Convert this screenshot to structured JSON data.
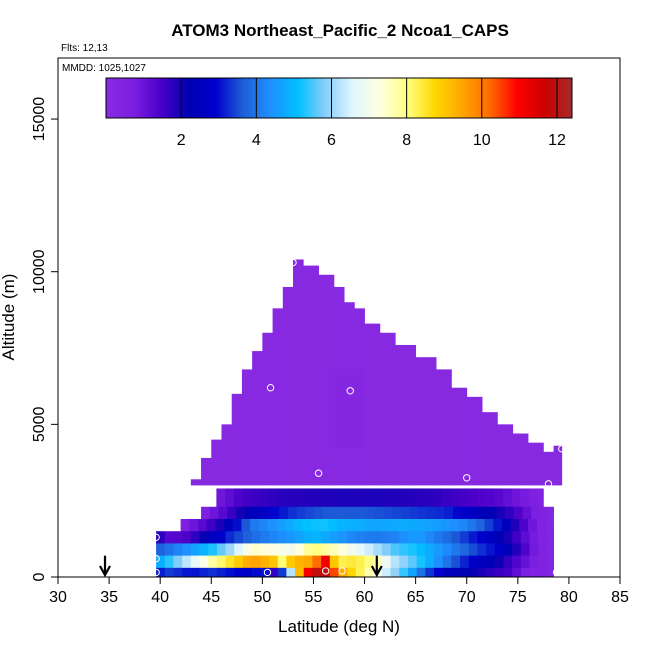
{
  "chart_data": {
    "type": "heatmap",
    "title": "ATOM3 Northeast_Pacific_2 Ncoa1_CAPS",
    "flights_label": "Flts: 12,13",
    "dates_label": "MMDD: 1025,1027",
    "xlabel": "Latitude (deg N)",
    "ylabel": "Altitude (m)",
    "xlim": [
      30,
      85
    ],
    "ylim": [
      0,
      17000
    ],
    "x_ticks": [
      "30",
      "35",
      "40",
      "45",
      "50",
      "55",
      "60",
      "65",
      "70",
      "75",
      "80",
      "85"
    ],
    "y_ticks": [
      "0",
      "5000",
      "10000",
      "15000"
    ],
    "colorbar": {
      "range": [
        0,
        12.4
      ],
      "ticks": [
        "2",
        "4",
        "6",
        "8",
        "10",
        "12"
      ],
      "colors": [
        "#8a2be2",
        "#7b1fe0",
        "#4a00c8",
        "#0000b0",
        "#0000cd",
        "#1e5fd8",
        "#1e90ff",
        "#00bfff",
        "#87cefa",
        "#e0f6ff",
        "#ffffe0",
        "#ffff80",
        "#ffd700",
        "#ffa500",
        "#ff6a00",
        "#ff0000",
        "#cd0000",
        "#a52a2a"
      ]
    },
    "cell_size": {
      "dlat": 0.85,
      "dalt": 500
    },
    "profile_outline": [
      [
        39.6,
        0,
        1500
      ],
      [
        41.0,
        0,
        2000
      ],
      [
        42.0,
        0,
        2500
      ],
      [
        43.0,
        0,
        3200
      ],
      [
        44.0,
        0,
        3900
      ],
      [
        45.0,
        0,
        4500
      ],
      [
        46.0,
        0,
        5000
      ],
      [
        47.0,
        0,
        6000
      ],
      [
        48.0,
        0,
        6800
      ],
      [
        49.0,
        0,
        7400
      ],
      [
        50.0,
        0,
        8000
      ],
      [
        51.0,
        0,
        8800
      ],
      [
        52.0,
        0,
        9500
      ],
      [
        53.0,
        0,
        10400
      ],
      [
        54.0,
        0,
        10200
      ],
      [
        55.5,
        0,
        9900
      ],
      [
        57.0,
        0,
        9500
      ],
      [
        58.0,
        0,
        9000
      ],
      [
        59.0,
        0,
        8800
      ],
      [
        60.0,
        0,
        8300
      ],
      [
        61.5,
        0,
        8000
      ],
      [
        63.0,
        0,
        7600
      ],
      [
        65.0,
        0,
        7200
      ],
      [
        67.0,
        0,
        6800
      ],
      [
        68.5,
        0,
        6200
      ],
      [
        70.0,
        0,
        5900
      ],
      [
        71.5,
        0,
        5400
      ],
      [
        73.0,
        0,
        5000
      ],
      [
        74.5,
        0,
        4700
      ],
      [
        76.0,
        0,
        4400
      ],
      [
        77.5,
        0,
        4100
      ],
      [
        78.5,
        0,
        4300
      ]
    ],
    "layers": [
      {
        "alt": [
          2300,
          2900
        ],
        "lat": [
          45.5,
          77.5
        ],
        "profile": [
          [
            45.5,
            0.8
          ],
          [
            48,
            1.5
          ],
          [
            52,
            1.8
          ],
          [
            57,
            1.9
          ],
          [
            62,
            1.9
          ],
          [
            66,
            1.8
          ],
          [
            70,
            1.5
          ],
          [
            73,
            1.3
          ],
          [
            75,
            0.9
          ],
          [
            77.5,
            0.5
          ]
        ]
      },
      {
        "alt": [
          1900,
          2300
        ],
        "lat": [
          44.0,
          78.5
        ],
        "profile": [
          [
            44,
            0.5
          ],
          [
            46,
            1.2
          ],
          [
            49,
            2.5
          ],
          [
            53,
            3.3
          ],
          [
            56,
            3.6
          ],
          [
            60,
            3.6
          ],
          [
            64,
            3.4
          ],
          [
            68,
            3.2
          ],
          [
            71,
            2.5
          ],
          [
            74,
            1.8
          ],
          [
            77,
            0.6
          ],
          [
            78.5,
            0.3
          ]
        ]
      },
      {
        "alt": [
          1500,
          1900
        ],
        "lat": [
          42.0,
          78.5
        ],
        "profile": [
          [
            42,
            0.5
          ],
          [
            44,
            1.2
          ],
          [
            46,
            2.0
          ],
          [
            49,
            4.0
          ],
          [
            52,
            4.6
          ],
          [
            54,
            5.1
          ],
          [
            56,
            5.2
          ],
          [
            58,
            4.9
          ],
          [
            61,
            4.7
          ],
          [
            64,
            4.8
          ],
          [
            67,
            4.6
          ],
          [
            70,
            4.2
          ],
          [
            73,
            3.1
          ],
          [
            75,
            1.7
          ],
          [
            77,
            0.6
          ],
          [
            78.5,
            0.2
          ]
        ]
      },
      {
        "alt": [
          1100,
          1500
        ],
        "lat": [
          39.6,
          78.5
        ],
        "profile": [
          [
            39.6,
            2.0
          ],
          [
            41,
            1.2
          ],
          [
            43,
            1.5
          ],
          [
            45,
            2.5
          ],
          [
            47,
            3.3
          ],
          [
            49,
            3.8
          ],
          [
            51,
            4.2
          ],
          [
            53,
            4.5
          ],
          [
            55,
            5.0
          ],
          [
            57,
            4.6
          ],
          [
            59,
            4.2
          ],
          [
            61,
            4.0
          ],
          [
            63,
            4.2
          ],
          [
            65,
            4.6
          ],
          [
            67,
            4.1
          ],
          [
            70,
            3.3
          ],
          [
            73,
            2.4
          ],
          [
            75,
            1.5
          ],
          [
            77,
            0.6
          ],
          [
            78.5,
            0.3
          ]
        ]
      },
      {
        "alt": [
          700,
          1100
        ],
        "lat": [
          39.6,
          78.5
        ],
        "profile": [
          [
            39.6,
            3.6
          ],
          [
            41,
            4.0
          ],
          [
            43,
            4.5
          ],
          [
            45,
            5.2
          ],
          [
            47,
            6.1
          ],
          [
            49,
            7.5
          ],
          [
            51,
            7.2
          ],
          [
            53,
            7.0
          ],
          [
            55,
            8.1
          ],
          [
            57,
            7.6
          ],
          [
            59,
            6.9
          ],
          [
            61,
            6.2
          ],
          [
            63,
            5.5
          ],
          [
            65,
            5.2
          ],
          [
            67,
            4.6
          ],
          [
            69,
            4.0
          ],
          [
            71,
            3.4
          ],
          [
            73,
            2.9
          ],
          [
            75,
            1.8
          ],
          [
            77,
            0.6
          ],
          [
            78.5,
            0.3
          ]
        ]
      },
      {
        "alt": [
          300,
          700
        ],
        "lat": [
          39.6,
          78.5
        ],
        "profile": [
          [
            39.6,
            4.6
          ],
          [
            41,
            5.4
          ],
          [
            43,
            6.5
          ],
          [
            45,
            7.7
          ],
          [
            47,
            8.6
          ],
          [
            49,
            9.6
          ],
          [
            51,
            9.1
          ],
          [
            52,
            8.0
          ],
          [
            53,
            9.2
          ],
          [
            55,
            9.5
          ],
          [
            56,
            11.6
          ],
          [
            57,
            9.0
          ],
          [
            58,
            8.2
          ],
          [
            59,
            8.5
          ],
          [
            61,
            7.8
          ],
          [
            63,
            6.2
          ],
          [
            65,
            5.5
          ],
          [
            67,
            4.5
          ],
          [
            69,
            3.5
          ],
          [
            71,
            2.7
          ],
          [
            73,
            2.1
          ],
          [
            75,
            1.3
          ],
          [
            77,
            0.6
          ],
          [
            78.5,
            0.3
          ]
        ]
      },
      {
        "alt": [
          0,
          300
        ],
        "lat": [
          39.6,
          78.5
        ],
        "profile": [
          [
            39.6,
            3.0
          ],
          [
            41,
            3.4
          ],
          [
            43,
            3.0
          ],
          [
            45,
            3.3
          ],
          [
            47,
            3.0
          ],
          [
            49,
            2.7
          ],
          [
            50,
            3.5
          ],
          [
            51,
            1.5
          ],
          [
            52,
            3.5
          ],
          [
            54,
            10.5
          ],
          [
            55,
            11.8
          ],
          [
            56,
            12.2
          ],
          [
            57,
            10.5
          ],
          [
            58,
            9.2
          ],
          [
            60,
            8.0
          ],
          [
            62,
            6.5
          ],
          [
            64,
            5.3
          ],
          [
            66,
            3.5
          ],
          [
            68,
            2.5
          ],
          [
            70,
            2.3
          ],
          [
            72,
            1.8
          ],
          [
            74,
            1.5
          ],
          [
            76,
            0.6
          ],
          [
            78.5,
            0.3
          ]
        ]
      }
    ],
    "sample_points": [
      {
        "lat": 53.0,
        "alt": 10300
      },
      {
        "lat": 50.8,
        "alt": 6200
      },
      {
        "lat": 58.6,
        "alt": 6100
      },
      {
        "lat": 55.5,
        "alt": 3400
      },
      {
        "lat": 70.0,
        "alt": 3250
      },
      {
        "lat": 78.0,
        "alt": 3050
      },
      {
        "lat": 79.3,
        "alt": 4200
      },
      {
        "lat": 39.6,
        "alt": 1300
      },
      {
        "lat": 39.6,
        "alt": 600
      },
      {
        "lat": 39.6,
        "alt": 150
      },
      {
        "lat": 44.3,
        "alt": 450
      },
      {
        "lat": 50.5,
        "alt": 150
      },
      {
        "lat": 56.2,
        "alt": 200
      },
      {
        "lat": 57.8,
        "alt": 200
      },
      {
        "lat": 78.8,
        "alt": 150
      }
    ],
    "arrows": [
      {
        "lat": 34.6,
        "alt_top": 600,
        "alt_bottom": 0
      },
      {
        "lat": 61.2,
        "alt_top": 600,
        "alt_bottom": 0
      }
    ]
  }
}
